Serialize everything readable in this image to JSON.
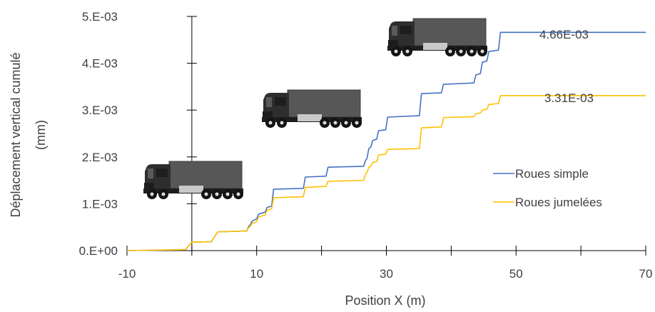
{
  "chart_data": {
    "type": "line",
    "xlabel": "Position X (m)",
    "ylabel_line1": "Déplacement vertical cumulé",
    "ylabel_line2": "(mm)",
    "xlim": [
      -10,
      70
    ],
    "ylim": [
      0,
      0.005
    ],
    "x_ticks": [
      -10,
      10,
      30,
      50,
      70
    ],
    "x_tick_labels": [
      "-10",
      "10",
      "30",
      "50",
      "70"
    ],
    "x_minor_ticks": [
      0,
      20,
      40,
      60
    ],
    "y_ticks": [
      0,
      0.001,
      0.002,
      0.003,
      0.004,
      0.005
    ],
    "y_tick_labels": [
      "0.E+00",
      "1.E-03",
      "2.E-03",
      "3.E-03",
      "4.E-03",
      "5.E-03"
    ],
    "grid": false,
    "legend_position": "right",
    "series": [
      {
        "name": "Roues simple",
        "color": "#4472C4",
        "end_label": "4.66E-03",
        "x": [
          -10,
          -1,
          0,
          3,
          4,
          8.5,
          8.7,
          9.0,
          9.3,
          10.0,
          10.3,
          11.3,
          11.6,
          12.3,
          12.6,
          17.2,
          17.5,
          20.7,
          21.0,
          26.5,
          26.8,
          27.0,
          27.3,
          27.6,
          27.9,
          28.5,
          28.8,
          29.9,
          30.2,
          35.1,
          35.4,
          38.5,
          38.8,
          43.5,
          43.8,
          44.5,
          44.8,
          45.5,
          45.8,
          47.3,
          47.6,
          70
        ],
        "values": [
          0,
          2e-05,
          0.00018,
          0.00019,
          0.0004,
          0.00042,
          0.0005,
          0.00055,
          0.00063,
          0.00068,
          0.00078,
          0.00082,
          0.00092,
          0.00095,
          0.00131,
          0.00133,
          0.00157,
          0.00159,
          0.00178,
          0.0018,
          0.00193,
          0.00196,
          0.00218,
          0.00221,
          0.00235,
          0.00238,
          0.00256,
          0.00258,
          0.00285,
          0.00288,
          0.00335,
          0.00337,
          0.00355,
          0.00358,
          0.00375,
          0.00378,
          0.00402,
          0.00405,
          0.00425,
          0.00428,
          0.00466,
          0.00466
        ]
      },
      {
        "name": "Roues jumelées",
        "color": "#FFC000",
        "end_label": "3.31E-03",
        "x": [
          -10,
          -1,
          0,
          3,
          4,
          8.5,
          8.7,
          9.0,
          9.3,
          10.0,
          10.3,
          11.3,
          11.6,
          12.3,
          12.6,
          17.2,
          17.5,
          20.7,
          21.0,
          26.5,
          26.8,
          27.0,
          27.3,
          27.6,
          27.9,
          28.5,
          28.8,
          29.9,
          30.2,
          35.1,
          35.4,
          38.5,
          38.8,
          43.5,
          43.8,
          44.5,
          44.8,
          45.5,
          45.8,
          47.3,
          47.6,
          70
        ],
        "values": [
          0,
          2e-05,
          0.00018,
          0.00019,
          0.0004,
          0.00042,
          0.00048,
          0.00052,
          0.00058,
          0.00062,
          0.00072,
          0.00076,
          0.00086,
          0.00089,
          0.00113,
          0.00115,
          0.00135,
          0.00137,
          0.00148,
          0.0015,
          0.00164,
          0.00166,
          0.00178,
          0.0018,
          0.00188,
          0.0019,
          0.00204,
          0.00206,
          0.00216,
          0.00218,
          0.00262,
          0.00264,
          0.00284,
          0.00286,
          0.00292,
          0.00294,
          0.003,
          0.00302,
          0.00312,
          0.00314,
          0.00331,
          0.00331
        ]
      }
    ],
    "annotations": [
      "truck-icon",
      "truck-icon",
      "truck-icon"
    ]
  }
}
